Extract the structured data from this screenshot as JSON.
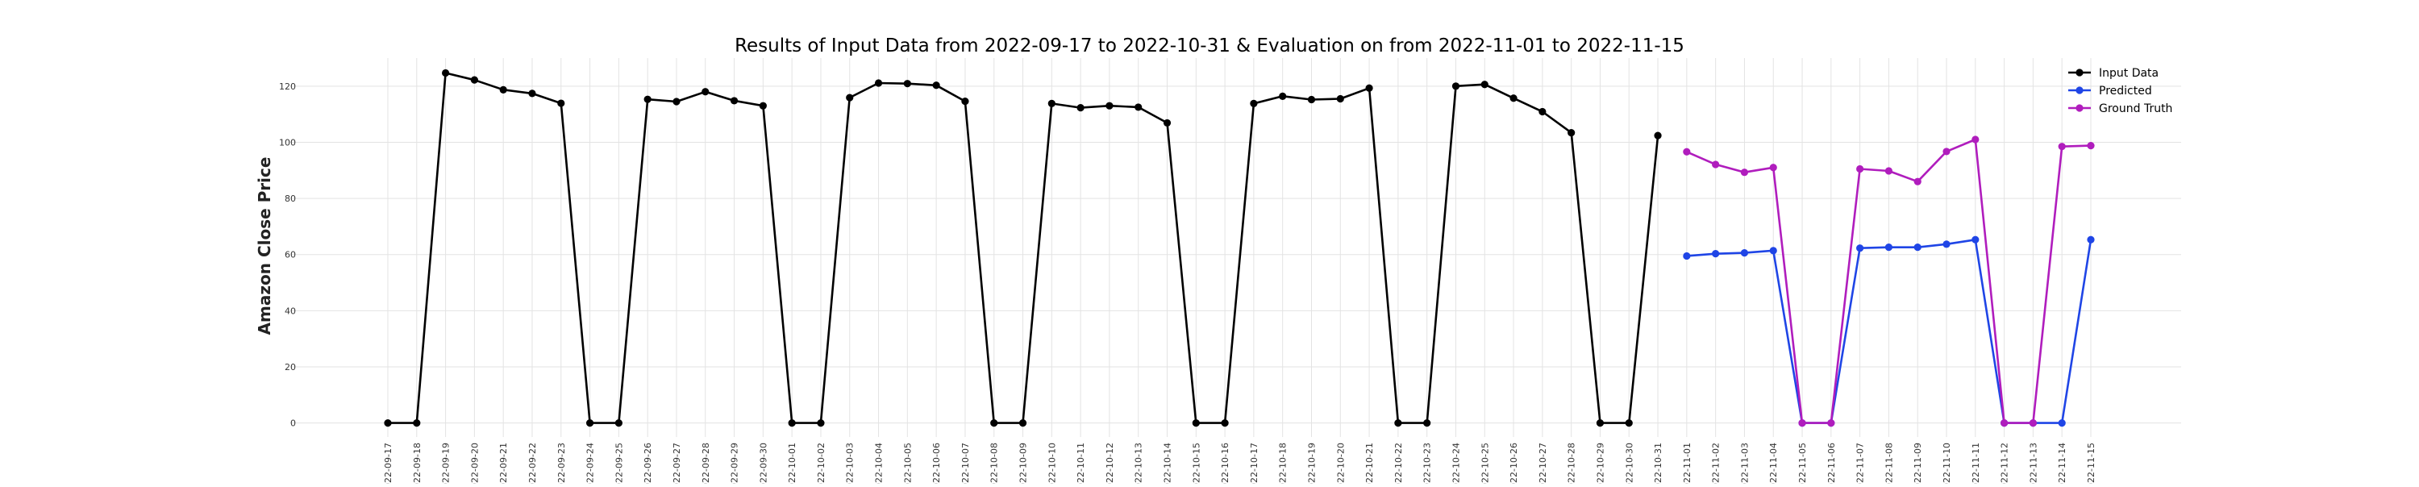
{
  "chart_data": {
    "type": "line",
    "title": "Results of Input Data from 2022-09-17 to 2022-10-31 & Evaluation on from 2022-11-01 to 2022-11-15",
    "xlabel": "",
    "ylabel": "Amazon Close Price",
    "ylim": [
      -5,
      130
    ],
    "yticks": [
      0,
      20,
      40,
      60,
      80,
      100,
      120
    ],
    "grid": true,
    "legend_position": "top-right",
    "categories": [
      "2022-09-17",
      "2022-09-18",
      "2022-09-19",
      "2022-09-20",
      "2022-09-21",
      "2022-09-22",
      "2022-09-23",
      "2022-09-24",
      "2022-09-25",
      "2022-09-26",
      "2022-09-27",
      "2022-09-28",
      "2022-09-29",
      "2022-09-30",
      "2022-10-01",
      "2022-10-02",
      "2022-10-03",
      "2022-10-04",
      "2022-10-05",
      "2022-10-06",
      "2022-10-07",
      "2022-10-08",
      "2022-10-09",
      "2022-10-10",
      "2022-10-11",
      "2022-10-12",
      "2022-10-13",
      "2022-10-14",
      "2022-10-15",
      "2022-10-16",
      "2022-10-17",
      "2022-10-18",
      "2022-10-19",
      "2022-10-20",
      "2022-10-21",
      "2022-10-22",
      "2022-10-23",
      "2022-10-24",
      "2022-10-25",
      "2022-10-26",
      "2022-10-27",
      "2022-10-28",
      "2022-10-29",
      "2022-10-30",
      "2022-10-31",
      "2022-11-01",
      "2022-11-02",
      "2022-11-03",
      "2022-11-04",
      "2022-11-05",
      "2022-11-06",
      "2022-11-07",
      "2022-11-08",
      "2022-11-09",
      "2022-11-10",
      "2022-11-11",
      "2022-11-12",
      "2022-11-13",
      "2022-11-14",
      "2022-11-15"
    ],
    "tick_labels": [
      "2022-09-17",
      "2022-09-18",
      "2022-09-19",
      "2022-09-20",
      "2022-09-21",
      "2022-09-22",
      "2022-09-23",
      "2022-09-24",
      "2022-09-25",
      "2022-09-26",
      "2022-09-27",
      "2022-09-28",
      "2022-09-29",
      "2022-09-30",
      "2022-10-01",
      "2022-10-02",
      "2022-10-03",
      "2022-10-04",
      "2022-10-05",
      "2022-10-06",
      "2022-10-07",
      "2022-10-08",
      "2022-10-09",
      "2022-10-10",
      "2022-10-11",
      "2022-10-12",
      "2022-10-13",
      "2022-10-14",
      "2022-10-15",
      "2022-10-16",
      "2022-10-17",
      "2022-10-18",
      "2022-10-19",
      "2022-10-20",
      "2022-10-21",
      "2022-10-22",
      "2022-10-23",
      "2022-10-24",
      "2022-10-25",
      "2022-10-26",
      "2022-10-27",
      "2022-10-28",
      "2022-10-29",
      "2022-10-30",
      "2022-10-31",
      "2022-11-01",
      "2022-11-02",
      "2022-11-03",
      "2022-11-04",
      "2022-11-05",
      "2022-11-06",
      "2022-11-07",
      "2022-11-08",
      "2022-11-09",
      "2022-11-10",
      "2022-11-11",
      "2022-11-12",
      "2022-11-13",
      "2022-11-14",
      "2022-11-15"
    ],
    "series": [
      {
        "name": "Input Data",
        "color": "#000000",
        "x": [
          "2022-09-17",
          "2022-09-18",
          "2022-09-19",
          "2022-09-20",
          "2022-09-21",
          "2022-09-22",
          "2022-09-23",
          "2022-09-24",
          "2022-09-25",
          "2022-09-26",
          "2022-09-27",
          "2022-09-28",
          "2022-09-29",
          "2022-09-30",
          "2022-10-01",
          "2022-10-02",
          "2022-10-03",
          "2022-10-04",
          "2022-10-05",
          "2022-10-06",
          "2022-10-07",
          "2022-10-08",
          "2022-10-09",
          "2022-10-10",
          "2022-10-11",
          "2022-10-12",
          "2022-10-13",
          "2022-10-14",
          "2022-10-15",
          "2022-10-16",
          "2022-10-17",
          "2022-10-18",
          "2022-10-19",
          "2022-10-20",
          "2022-10-21",
          "2022-10-22",
          "2022-10-23",
          "2022-10-24",
          "2022-10-25",
          "2022-10-26",
          "2022-10-27",
          "2022-10-28",
          "2022-10-29",
          "2022-10-30",
          "2022-10-31"
        ],
        "values": [
          0,
          0,
          124.7,
          122.2,
          118.7,
          117.4,
          113.9,
          0,
          0,
          115.3,
          114.5,
          118.0,
          114.8,
          113.0,
          0,
          0,
          115.9,
          121.1,
          120.9,
          120.3,
          114.6,
          0,
          0,
          113.8,
          112.3,
          113.0,
          112.5,
          106.9,
          0,
          0,
          113.8,
          116.4,
          115.2,
          115.5,
          119.3,
          0,
          0,
          120.0,
          120.6,
          115.7,
          110.9,
          103.4,
          0,
          0,
          102.4
        ]
      },
      {
        "name": "Predicted",
        "color": "#1f45e6",
        "x": [
          "2022-11-01",
          "2022-11-02",
          "2022-11-03",
          "2022-11-04",
          "2022-11-05",
          "2022-11-06",
          "2022-11-07",
          "2022-11-08",
          "2022-11-09",
          "2022-11-10",
          "2022-11-11",
          "2022-11-12",
          "2022-11-13",
          "2022-11-14",
          "2022-11-15"
        ],
        "values": [
          59.5,
          60.3,
          60.6,
          61.4,
          0,
          0,
          62.3,
          62.6,
          62.6,
          63.7,
          65.3,
          0,
          0,
          0,
          65.3
        ]
      },
      {
        "name": "Ground Truth",
        "color": "#b01dbd",
        "x": [
          "2022-11-01",
          "2022-11-02",
          "2022-11-03",
          "2022-11-04",
          "2022-11-05",
          "2022-11-06",
          "2022-11-07",
          "2022-11-08",
          "2022-11-09",
          "2022-11-10",
          "2022-11-11",
          "2022-11-12",
          "2022-11-13",
          "2022-11-14",
          "2022-11-15"
        ],
        "values": [
          96.6,
          92.1,
          89.3,
          91.0,
          0,
          0,
          90.5,
          89.8,
          86.0,
          96.7,
          101.0,
          0,
          0,
          98.5,
          98.8
        ]
      }
    ]
  }
}
